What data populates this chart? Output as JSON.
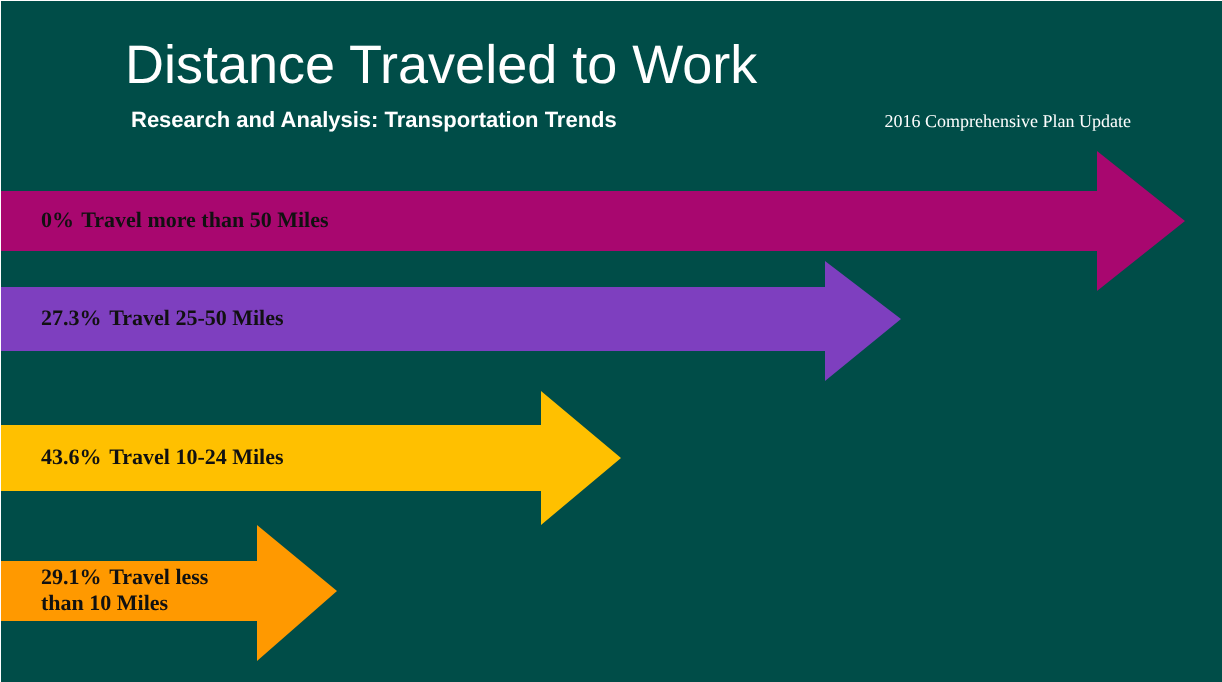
{
  "chart_data": {
    "type": "other",
    "title": "Distance Traveled to Work",
    "subtitle": "Research and Analysis: Transportation Trends",
    "annotations": [
      "2016 Comprehensive Plan Update"
    ],
    "categories": [
      "Travel more than 50 Miles",
      "Travel 25-50 Miles",
      "Travel 10-24 Miles",
      "Travel less than 10 Miles"
    ],
    "values": [
      0,
      27.3,
      43.6,
      29.1
    ],
    "value_labels": [
      "0%",
      "27.3%",
      "43.6%",
      "29.1%"
    ],
    "colors": [
      "#a8076f",
      "#7e3fbf",
      "#ffc000",
      "#ff9900"
    ]
  }
}
